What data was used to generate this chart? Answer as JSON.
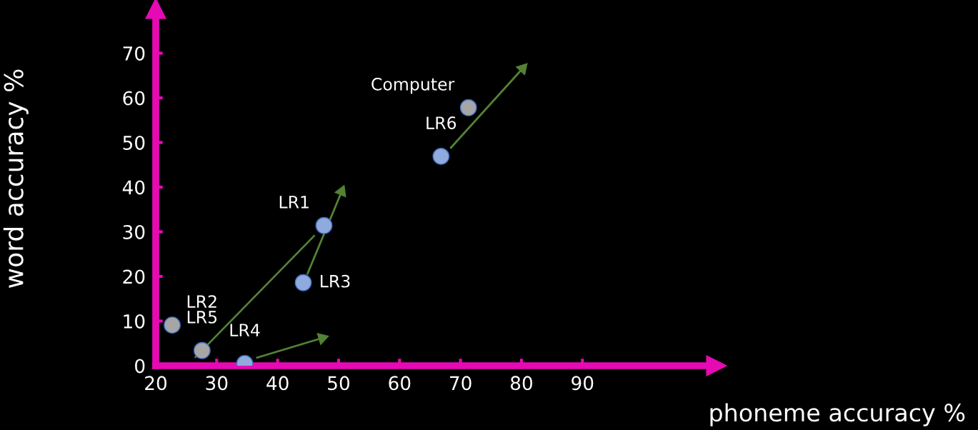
{
  "chart_data": {
    "type": "scatter",
    "xlabel": "phoneme accuracy %",
    "ylabel": "word accuracy %",
    "xlim": [
      20,
      112
    ],
    "ylim": [
      0,
      80
    ],
    "xticks": [
      20,
      30,
      40,
      50,
      60,
      70,
      80,
      90
    ],
    "yticks": [
      0,
      10,
      20,
      30,
      40,
      50,
      60,
      70
    ],
    "grid": false,
    "legend": false,
    "marker": "circle",
    "series": [
      {
        "x": [
          22.7,
          27.6,
          34.6,
          44.2,
          47.6,
          66.8,
          71.3
        ],
        "values": [
          9.1,
          3.4,
          0.5,
          18.6,
          31.4,
          46.9,
          57.8
        ],
        "colors": [
          "#a6a6a6",
          "#a6a6a6",
          "#8faadc",
          "#8faadc",
          "#8faadc",
          "#8faadc",
          "#a6a6a6"
        ]
      },
      {
        "type": "line",
        "color": "#548235",
        "marker": "none",
        "x": [
          26.5,
          46.0
        ],
        "values": [
          1.9,
          29.1
        ]
      },
      {
        "type": "line",
        "color": "#548235",
        "marker": "triangle",
        "x": [
          44.9,
          50.5
        ],
        "values": [
          20.6,
          39.0
        ]
      },
      {
        "type": "line",
        "color": "#548235",
        "marker": "triangle",
        "x": [
          36.6,
          47.3
        ],
        "values": [
          1.8,
          6.2
        ]
      },
      {
        "type": "line",
        "color": "#548235",
        "marker": "triangle",
        "x": [
          68.4,
          80.2
        ],
        "values": [
          48.8,
          66.6
        ]
      }
    ],
    "annotations": [
      {
        "text": "Computer",
        "x": 71.3,
        "y": 57.8
      },
      {
        "text": "LR6",
        "x": 66.8,
        "y": 46.9
      },
      {
        "text": "LR1",
        "x": 47.6,
        "y": 31.4
      },
      {
        "text": "LR3",
        "x": 44.2,
        "y": 18.6
      },
      {
        "text": "LR2",
        "x": 22.7,
        "y": 9.1
      },
      {
        "text": "LR5",
        "x": 27.6,
        "y": 3.4
      },
      {
        "text": "LR4",
        "x": 34.6,
        "y": 0.5
      }
    ]
  }
}
